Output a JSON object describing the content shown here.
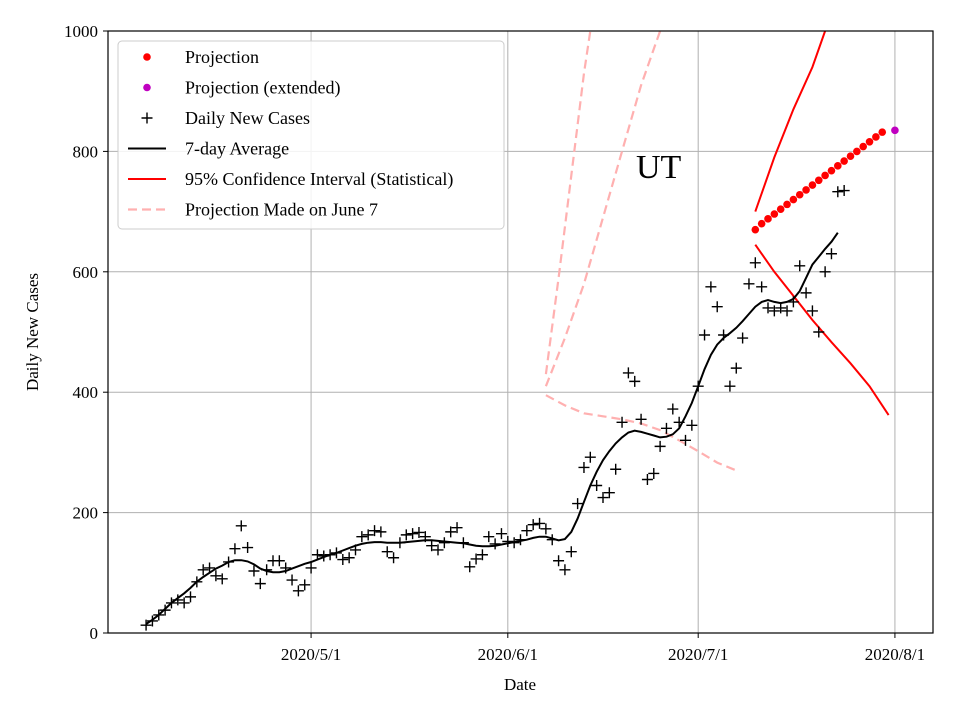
{
  "chart_data": {
    "type": "line",
    "title": "",
    "xlabel": "Date",
    "ylabel": "Daily New Cases",
    "annotation": "UT",
    "xlim": [
      "2020-03-30",
      "2020-08-07"
    ],
    "ylim": [
      0,
      1000
    ],
    "x_ticks": [
      {
        "date": "2020-05-01",
        "label": "2020/5/1"
      },
      {
        "date": "2020-06-01",
        "label": "2020/6/1"
      },
      {
        "date": "2020-07-01",
        "label": "2020/7/1"
      },
      {
        "date": "2020-08-01",
        "label": "2020/8/1"
      }
    ],
    "y_ticks": [
      0,
      200,
      400,
      600,
      800,
      1000
    ],
    "y_tick_labels": [
      "0",
      "200",
      "400",
      "600",
      "800",
      "1000"
    ],
    "grid": true,
    "legend_position": "top-left",
    "legend": [
      {
        "label": "Projection",
        "style": "dot",
        "color": "#ff0000"
      },
      {
        "label": "Projection (extended)",
        "style": "dot",
        "color": "#c000c0"
      },
      {
        "label": "Daily New Cases",
        "style": "plus",
        "color": "#000000"
      },
      {
        "label": "7-day Average",
        "style": "line",
        "color": "#000000"
      },
      {
        "label": "95% Confidence Interval (Statistical)",
        "style": "line",
        "color": "#ff0000"
      },
      {
        "label": "Projection Made on June 7",
        "style": "dashed",
        "color": "#ffb0b0"
      }
    ],
    "colors": {
      "projection": "#ff0000",
      "projection_extended": "#c000c0",
      "cases": "#000000",
      "average": "#000000",
      "ci": "#ff0000",
      "old_projection": "#ffb0b0"
    },
    "start_date": "2020-04-05",
    "daily_new_cases": [
      13,
      20,
      30,
      38,
      50,
      55,
      50,
      60,
      85,
      105,
      108,
      95,
      90,
      118,
      140,
      178,
      142,
      103,
      82,
      105,
      120,
      120,
      108,
      88,
      70,
      80,
      108,
      130,
      128,
      130,
      133,
      122,
      125,
      138,
      160,
      163,
      170,
      168,
      135,
      125,
      150,
      163,
      165,
      167,
      160,
      145,
      138,
      150,
      168,
      175,
      150,
      110,
      123,
      130,
      160,
      148,
      165,
      152,
      150,
      155,
      170,
      180,
      182,
      173,
      155,
      120,
      105,
      135,
      215,
      275,
      292,
      245,
      225,
      233,
      272,
      350,
      432,
      418,
      355,
      255,
      265,
      310,
      340,
      372,
      350,
      320,
      345,
      410,
      495,
      575,
      542,
      495,
      410,
      440,
      490,
      580,
      615,
      575,
      540,
      535,
      540,
      535,
      550,
      610,
      565,
      535,
      500,
      600,
      630,
      733,
      735
    ],
    "avg_start_date": "2020-04-05",
    "seven_day_average": [
      15,
      22,
      30,
      40,
      50,
      58,
      66,
      75,
      85,
      93,
      100,
      107,
      112,
      118,
      121,
      121,
      119,
      114,
      107,
      103,
      101,
      101,
      103,
      107,
      111,
      115,
      118,
      122,
      126,
      130,
      133,
      137,
      141,
      145,
      148,
      150,
      151,
      151,
      150,
      150,
      150,
      151,
      152,
      153,
      154,
      154,
      153,
      152,
      151,
      150,
      149,
      147,
      145,
      144,
      144,
      145,
      147,
      149,
      151,
      153,
      155,
      158,
      160,
      160,
      157,
      154,
      156,
      168,
      190,
      218,
      245,
      268,
      287,
      302,
      315,
      325,
      333,
      336,
      334,
      331,
      328,
      325,
      326,
      330,
      340,
      360,
      382,
      410,
      438,
      462,
      479,
      490,
      498,
      507,
      518,
      530,
      542,
      550,
      553,
      550,
      548,
      550,
      555,
      568,
      590,
      612,
      625,
      638,
      650,
      665
    ],
    "projection": {
      "start_date": "2020-07-10",
      "values": [
        670,
        680,
        688,
        696,
        704,
        712,
        720,
        728,
        736,
        744,
        752,
        760,
        768,
        776,
        784,
        792,
        800,
        808,
        816,
        824,
        832
      ],
      "extended_point": {
        "date": "2020-08-01",
        "value": 835
      }
    },
    "ci_upper": [
      {
        "date": "2020-07-10",
        "value": 700
      },
      {
        "date": "2020-07-13",
        "value": 790
      },
      {
        "date": "2020-07-16",
        "value": 870
      },
      {
        "date": "2020-07-19",
        "value": 940
      },
      {
        "date": "2020-07-21",
        "value": 1000
      }
    ],
    "ci_lower": [
      {
        "date": "2020-07-10",
        "value": 645
      },
      {
        "date": "2020-07-13",
        "value": 600
      },
      {
        "date": "2020-07-16",
        "value": 560
      },
      {
        "date": "2020-07-19",
        "value": 520
      },
      {
        "date": "2020-07-22",
        "value": 483
      },
      {
        "date": "2020-07-25",
        "value": 448
      },
      {
        "date": "2020-07-28",
        "value": 410
      },
      {
        "date": "2020-07-31",
        "value": 362
      }
    ],
    "june7_projection_upper": [
      {
        "date": "2020-06-07",
        "value": 430
      },
      {
        "date": "2020-06-09",
        "value": 590
      },
      {
        "date": "2020-06-11",
        "value": 760
      },
      {
        "date": "2020-06-13",
        "value": 930
      },
      {
        "date": "2020-06-14",
        "value": 1000
      }
    ],
    "june7_projection_middle": [
      {
        "date": "2020-06-07",
        "value": 410
      },
      {
        "date": "2020-06-10",
        "value": 490
      },
      {
        "date": "2020-06-13",
        "value": 580
      },
      {
        "date": "2020-06-16",
        "value": 690
      },
      {
        "date": "2020-06-19",
        "value": 800
      },
      {
        "date": "2020-06-22",
        "value": 910
      },
      {
        "date": "2020-06-25",
        "value": 1000
      }
    ],
    "june7_projection_lower": [
      {
        "date": "2020-06-07",
        "value": 395
      },
      {
        "date": "2020-06-10",
        "value": 378
      },
      {
        "date": "2020-06-13",
        "value": 365
      },
      {
        "date": "2020-06-16",
        "value": 360
      },
      {
        "date": "2020-06-19",
        "value": 355
      },
      {
        "date": "2020-06-22",
        "value": 348
      },
      {
        "date": "2020-06-25",
        "value": 337
      },
      {
        "date": "2020-06-28",
        "value": 320
      },
      {
        "date": "2020-07-01",
        "value": 302
      },
      {
        "date": "2020-07-04",
        "value": 283
      },
      {
        "date": "2020-07-07",
        "value": 270
      }
    ]
  }
}
